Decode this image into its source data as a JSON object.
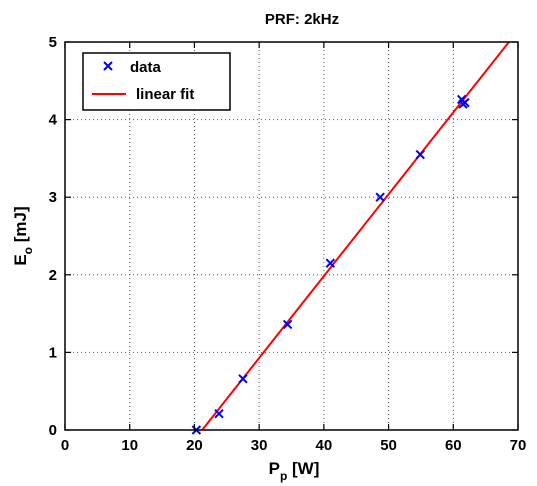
{
  "chart_data": {
    "type": "scatter",
    "title": "PRF: 2kHz",
    "xlabel": {
      "main": "P",
      "sub": "p",
      "unit": " [W]"
    },
    "ylabel": {
      "main": "E",
      "sub": "o",
      "unit": " [mJ]"
    },
    "xlim": [
      0,
      70
    ],
    "ylim": [
      0,
      5
    ],
    "xticks": [
      0,
      10,
      20,
      30,
      40,
      50,
      60,
      70
    ],
    "yticks": [
      0,
      1,
      2,
      3,
      4,
      5
    ],
    "grid": true,
    "legend_position": "top-left",
    "series": [
      {
        "name": "data",
        "kind": "scatter",
        "marker": "x",
        "color": "#0000ff",
        "points": [
          {
            "x": 20.3,
            "y": 0.0
          },
          {
            "x": 23.8,
            "y": 0.21
          },
          {
            "x": 27.5,
            "y": 0.66
          },
          {
            "x": 34.4,
            "y": 1.36
          },
          {
            "x": 41.0,
            "y": 2.15
          },
          {
            "x": 48.7,
            "y": 3.0
          },
          {
            "x": 54.9,
            "y": 3.55
          },
          {
            "x": 61.3,
            "y": 4.26
          },
          {
            "x": 61.8,
            "y": 4.22
          },
          {
            "x": 61.5,
            "y": 4.2
          }
        ]
      },
      {
        "name": "linear fit",
        "kind": "line",
        "color": "#ff0000",
        "points": [
          {
            "x": 21.2,
            "y": 0.0
          },
          {
            "x": 68.6,
            "y": 5.0
          }
        ]
      }
    ]
  }
}
